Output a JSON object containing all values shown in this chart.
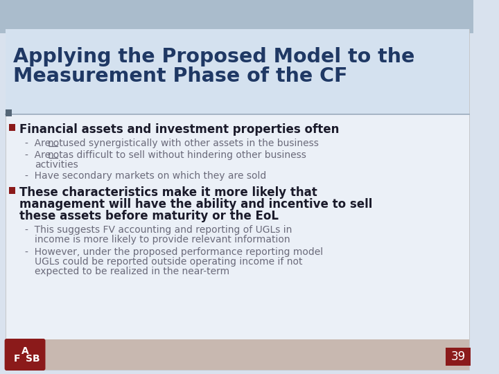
{
  "title_line1": "Applying the Proposed Model to the",
  "title_line2": "Measurement Phase of the CF",
  "title_color": "#1F3864",
  "bg_color": "#D9E2EE",
  "top_bg": "#AABCCC",
  "slide_bg": "#EBF0F7",
  "title_area_bg": "#D4E1EF",
  "bullet_color": "#8B1A1A",
  "bullet1_text": "Financial assets and investment properties often",
  "bullet2_line1": "These characteristics make it more likely that",
  "bullet2_line2": "management will have the ability and incentive to sell",
  "bullet2_line3": "these assets before maturity or the EoL",
  "sub_text_color": "#6A6A7A",
  "bullet_text_color": "#1A1A2A",
  "page_number": "39",
  "page_bg": "#8B1A1A",
  "separator_color": "#99AABB",
  "dot_color": "#556677"
}
